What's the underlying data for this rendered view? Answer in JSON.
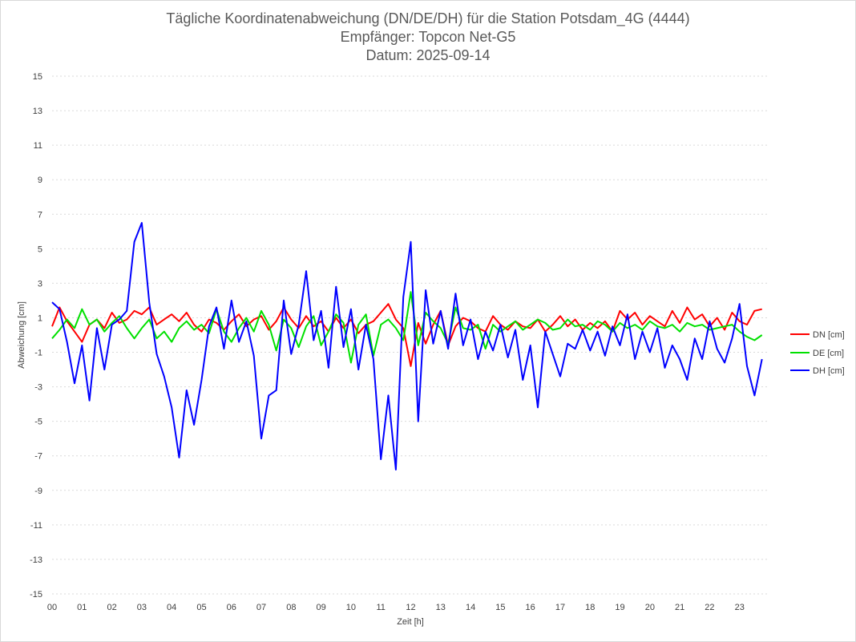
{
  "chart_data": {
    "type": "line",
    "title": [
      "Tägliche Koordinatenabweichung (DN/DE/DH) für die Station Potsdam_4G (4444)",
      "Empfänger: Topcon Net-G5",
      "Datum: 2025-09-14"
    ],
    "xlabel": "Zeit [h]",
    "ylabel": "Abweichung [cm]",
    "xlim": [
      0,
      24
    ],
    "ylim": [
      -15,
      15
    ],
    "y_ticks": [
      "15",
      "13",
      "11",
      "9",
      "7",
      "5",
      "3",
      "1",
      "-1",
      "-3",
      "-5",
      "-7",
      "-9",
      "-11",
      "-13",
      "-15"
    ],
    "x_ticks": [
      "00",
      "01",
      "02",
      "03",
      "04",
      "05",
      "06",
      "07",
      "08",
      "09",
      "10",
      "11",
      "12",
      "13",
      "14",
      "15",
      "16",
      "17",
      "18",
      "19",
      "20",
      "21",
      "22",
      "23"
    ],
    "grid": true,
    "legend_position": "right",
    "x": [
      0,
      0.25,
      0.5,
      0.75,
      1,
      1.25,
      1.5,
      1.75,
      2,
      2.25,
      2.5,
      2.75,
      3,
      3.25,
      3.5,
      3.75,
      4,
      4.25,
      4.5,
      4.75,
      5,
      5.25,
      5.5,
      5.75,
      6,
      6.25,
      6.5,
      6.75,
      7,
      7.25,
      7.5,
      7.75,
      8,
      8.25,
      8.5,
      8.75,
      9,
      9.25,
      9.5,
      9.75,
      10,
      10.25,
      10.5,
      10.75,
      11,
      11.25,
      11.5,
      11.75,
      12,
      12.25,
      12.5,
      12.75,
      13,
      13.25,
      13.5,
      13.75,
      14,
      14.25,
      14.5,
      14.75,
      15,
      15.25,
      15.5,
      15.75,
      16,
      16.25,
      16.5,
      16.75,
      17,
      17.25,
      17.5,
      17.75,
      18,
      18.25,
      18.5,
      18.75,
      19,
      19.25,
      19.5,
      19.75,
      20,
      20.25,
      20.5,
      20.75,
      21,
      21.25,
      21.5,
      21.75,
      22,
      22.25,
      22.5,
      22.75,
      23,
      23.25,
      23.5,
      23.75
    ],
    "series": [
      {
        "name": "DN [cm]",
        "color": "#ff0000",
        "values": [
          0.5,
          1.6,
          0.8,
          0.2,
          -0.4,
          0.6,
          0.9,
          0.4,
          1.3,
          0.7,
          0.9,
          1.4,
          1.2,
          1.6,
          0.6,
          0.9,
          1.2,
          0.8,
          1.3,
          0.6,
          0.2,
          0.9,
          0.7,
          0.3,
          0.8,
          1.2,
          0.5,
          0.9,
          1.1,
          0.3,
          0.8,
          1.6,
          0.9,
          0.4,
          1.1,
          0.5,
          0.8,
          0.2,
          1.0,
          0.4,
          0.9,
          0.1,
          0.6,
          0.8,
          1.3,
          1.8,
          0.9,
          0.4,
          -1.8,
          0.7,
          -0.5,
          0.6,
          1.4,
          -0.6,
          0.5,
          1.0,
          0.8,
          0.4,
          0.2,
          1.1,
          0.6,
          0.3,
          0.8,
          0.5,
          0.4,
          0.9,
          0.2,
          0.6,
          1.1,
          0.5,
          0.9,
          0.3,
          0.7,
          0.4,
          0.8,
          0.2,
          1.4,
          0.9,
          1.3,
          0.6,
          1.1,
          0.8,
          0.5,
          1.4,
          0.7,
          1.6,
          0.9,
          1.2,
          0.5,
          1.0,
          0.3,
          1.3,
          0.8,
          0.6,
          1.4,
          1.5
        ]
      },
      {
        "name": "DE [cm]",
        "color": "#00e000",
        "values": [
          -0.2,
          0.3,
          0.9,
          0.4,
          1.5,
          0.6,
          0.9,
          0.2,
          0.7,
          1.1,
          0.4,
          -0.2,
          0.4,
          0.9,
          -0.2,
          0.2,
          -0.4,
          0.4,
          0.8,
          0.3,
          0.6,
          0.1,
          1.5,
          0.2,
          -0.4,
          0.4,
          1.0,
          0.2,
          1.4,
          0.6,
          -0.9,
          0.9,
          0.4,
          -0.7,
          0.5,
          1.1,
          -0.6,
          0.2,
          1.2,
          0.7,
          -1.6,
          0.6,
          1.2,
          -1.2,
          0.6,
          0.9,
          0.4,
          -0.3,
          2.5,
          -0.6,
          1.3,
          0.8,
          0.4,
          -0.5,
          1.6,
          0.4,
          0.3,
          0.6,
          -0.8,
          0.6,
          0.2,
          0.5,
          0.8,
          0.3,
          0.6,
          0.9,
          0.7,
          0.3,
          0.4,
          0.9,
          0.5,
          0.6,
          0.3,
          0.8,
          0.6,
          0.2,
          0.7,
          0.4,
          0.6,
          0.3,
          0.8,
          0.5,
          0.4,
          0.6,
          0.2,
          0.7,
          0.5,
          0.6,
          0.3,
          0.4,
          0.5,
          0.6,
          0.2,
          -0.1,
          -0.3,
          0.0
        ]
      },
      {
        "name": "DH [cm]",
        "color": "#0000ff",
        "values": [
          1.9,
          1.5,
          -0.4,
          -2.8,
          -0.6,
          -3.8,
          0.4,
          -2.0,
          0.6,
          0.9,
          1.4,
          5.4,
          6.5,
          1.9,
          -1.1,
          -2.4,
          -4.2,
          -7.1,
          -3.2,
          -5.2,
          -2.6,
          0.5,
          1.6,
          -0.8,
          2.0,
          -0.4,
          0.8,
          -1.2,
          -6.0,
          -3.5,
          -3.2,
          2.0,
          -1.1,
          0.6,
          3.7,
          -0.3,
          1.4,
          -1.9,
          2.8,
          -0.7,
          1.5,
          -2.0,
          0.6,
          -1.4,
          -7.2,
          -3.5,
          -7.8,
          2.2,
          5.4,
          -5.0,
          2.6,
          -0.5,
          1.4,
          -0.8,
          2.4,
          -0.6,
          0.9,
          -1.4,
          0.2,
          -0.9,
          0.6,
          -1.3,
          0.3,
          -2.6,
          -0.6,
          -4.2,
          0.2,
          -1.1,
          -2.4,
          -0.5,
          -0.8,
          0.3,
          -0.9,
          0.2,
          -1.2,
          0.5,
          -0.6,
          1.2,
          -1.4,
          0.2,
          -1.0,
          0.4,
          -1.9,
          -0.6,
          -1.4,
          -2.6,
          -0.2,
          -1.4,
          0.8,
          -0.8,
          -1.6,
          -0.2,
          1.8,
          -1.8,
          -3.5,
          -1.4
        ]
      }
    ]
  }
}
